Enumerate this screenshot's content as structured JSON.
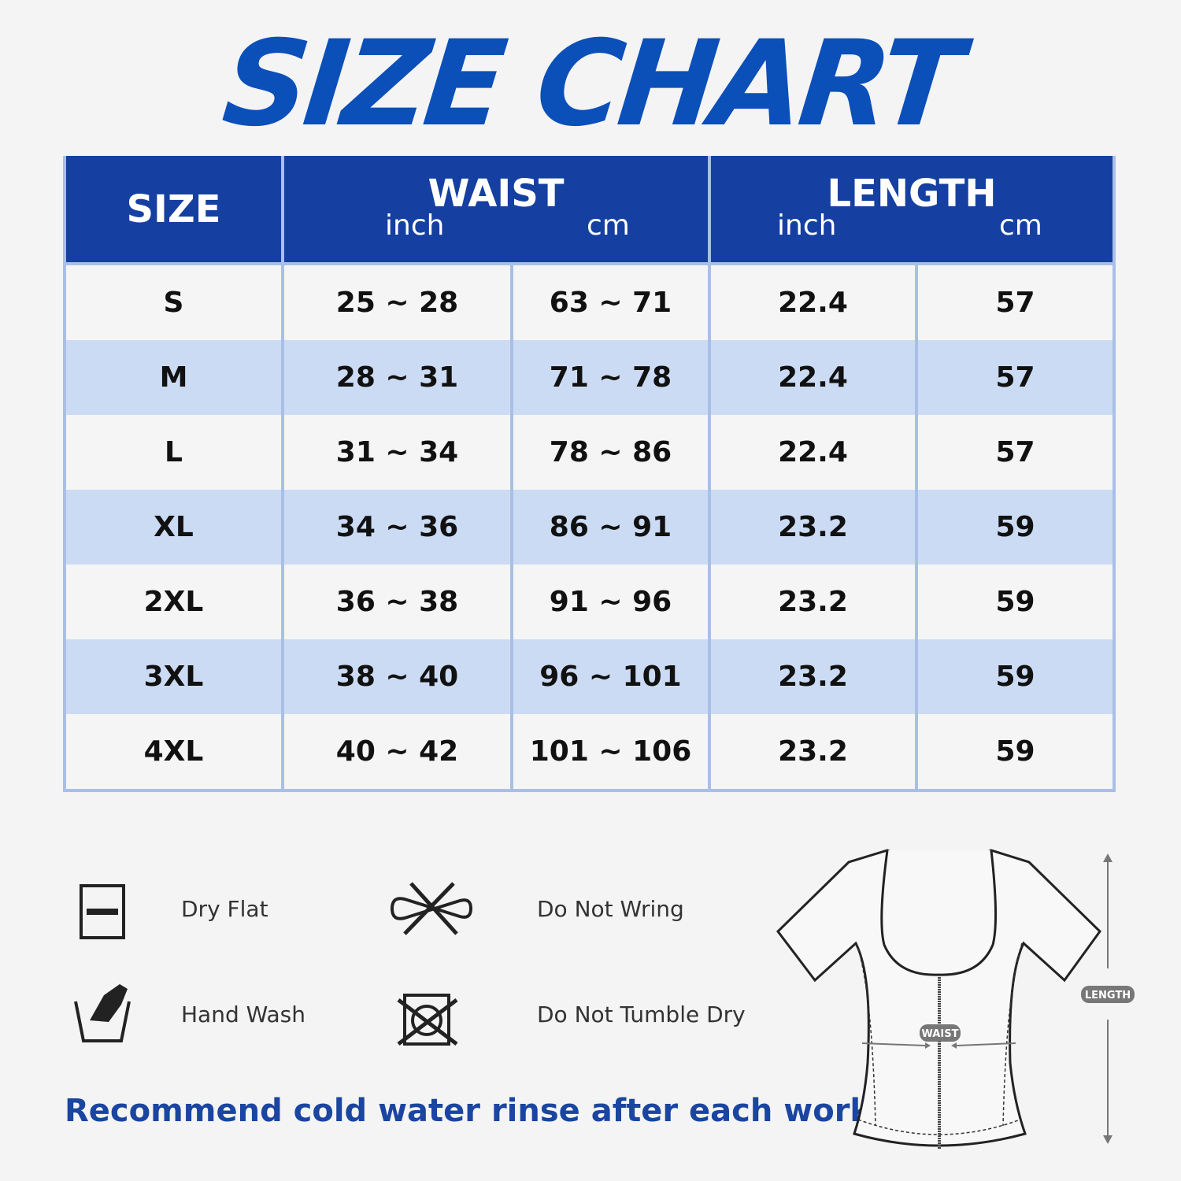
{
  "title": "SIZE CHART",
  "table": {
    "headers": {
      "size": "SIZE",
      "waist": "WAIST",
      "length": "LENGTH",
      "unit_inch": "inch",
      "unit_cm": "cm"
    },
    "rows": [
      {
        "size": "S",
        "waist_inch": "25 ~ 28",
        "waist_cm": "63 ~ 71",
        "length_inch": "22.4",
        "length_cm": "57"
      },
      {
        "size": "M",
        "waist_inch": "28 ~ 31",
        "waist_cm": "71 ~ 78",
        "length_inch": "22.4",
        "length_cm": "57"
      },
      {
        "size": "L",
        "waist_inch": "31 ~ 34",
        "waist_cm": "78 ~ 86",
        "length_inch": "22.4",
        "length_cm": "57"
      },
      {
        "size": "XL",
        "waist_inch": "34 ~ 36",
        "waist_cm": "86 ~ 91",
        "length_inch": "23.2",
        "length_cm": "59"
      },
      {
        "size": "2XL",
        "waist_inch": "36 ~ 38",
        "waist_cm": "91 ~ 96",
        "length_inch": "23.2",
        "length_cm": "59"
      },
      {
        "size": "3XL",
        "waist_inch": "38 ~ 40",
        "waist_cm": "96 ~ 101",
        "length_inch": "23.2",
        "length_cm": "59"
      },
      {
        "size": "4XL",
        "waist_inch": "40 ~ 42",
        "waist_cm": "101 ~ 106",
        "length_inch": "23.2",
        "length_cm": "59"
      }
    ]
  },
  "care": [
    {
      "icon": "dry-flat-icon",
      "label": "Dry Flat"
    },
    {
      "icon": "do-not-wring-icon",
      "label": "Do Not Wring"
    },
    {
      "icon": "hand-wash-icon",
      "label": "Hand Wash"
    },
    {
      "icon": "do-not-tumble-dry-icon",
      "label": "Do Not Tumble Dry"
    }
  ],
  "note": "Recommend cold water rinse after each workout.",
  "diagram": {
    "waist_label": "WAIST",
    "length_label": "LENGTH"
  },
  "colors": {
    "title": "#0b4fb8",
    "header": "#1540a2",
    "row_alt": "#ccdbf4",
    "note": "#1a45a0"
  }
}
